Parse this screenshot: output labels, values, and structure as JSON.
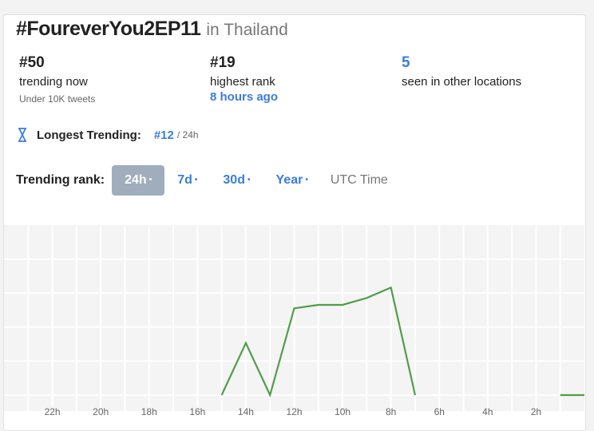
{
  "header": {
    "hashtag": "#FoureverYou2EP11",
    "location": "in Thailand"
  },
  "stats": [
    {
      "value": "#50",
      "label": "trending now",
      "sub": "Under 10K tweets"
    },
    {
      "value": "#19",
      "label": "highest rank",
      "sub": "8 hours ago"
    },
    {
      "value": "5",
      "label": "seen in other locations"
    }
  ],
  "longest": {
    "icon": "hourglass-icon",
    "label": "Longest Trending:",
    "rank": "#12",
    "period": "/ 24h"
  },
  "rank_controls": {
    "label": "Trending rank:",
    "tabs": [
      {
        "label": "24h",
        "active": true
      },
      {
        "label": "7d"
      },
      {
        "label": "30d"
      },
      {
        "label": "Year"
      }
    ],
    "timezone": "UTC Time"
  },
  "colors": {
    "accent": "#3b7dd8",
    "line": "#4f9e4a",
    "plot_bg": "#f4f4f4"
  },
  "chart_data": {
    "type": "line",
    "xlabel": "",
    "ylabel": "",
    "x_unit": "hours ago",
    "xlim": [
      24,
      0
    ],
    "ylim": [
      50,
      1
    ],
    "y_inverted": true,
    "grid": true,
    "x_tick_labels": [
      "22h",
      "20h",
      "18h",
      "16h",
      "14h",
      "12h",
      "10h",
      "8h",
      "6h",
      "4h",
      "2h"
    ],
    "x_ticks": [
      22,
      20,
      18,
      16,
      14,
      12,
      10,
      8,
      6,
      4,
      2
    ],
    "series": [
      {
        "segments": [
          [
            [
              15,
              50
            ],
            [
              14,
              35
            ],
            [
              13,
              50
            ],
            [
              12,
              25
            ],
            [
              11,
              24
            ],
            [
              10,
              24
            ],
            [
              9,
              22
            ],
            [
              8,
              19
            ],
            [
              7,
              50
            ]
          ],
          [
            [
              1,
              50
            ],
            [
              0,
              50
            ]
          ]
        ]
      }
    ]
  }
}
